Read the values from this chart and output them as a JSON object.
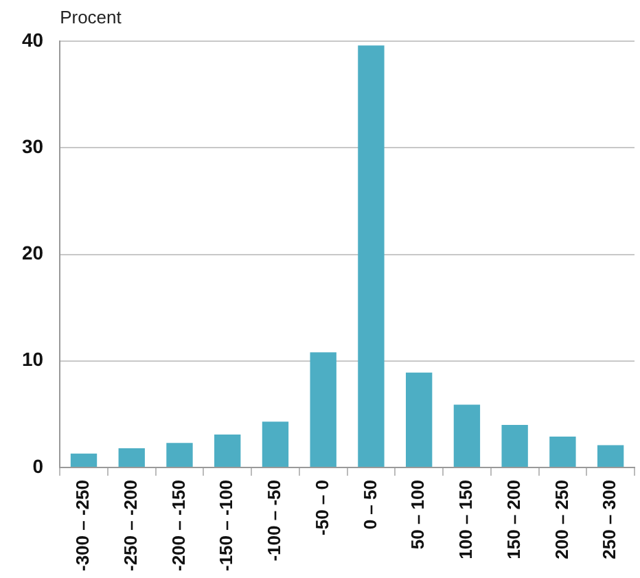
{
  "chart_data": {
    "type": "bar",
    "ylabel": "Procent",
    "categories": [
      "-300 – -250",
      "-250 – -200",
      "-200 – -150",
      "-150 – -100",
      "-100 – -50",
      "-50 – 0",
      "0 – 50",
      "50 – 100",
      "100 – 150",
      "150 – 200",
      "200 – 250",
      "250 – 300"
    ],
    "values": [
      1.3,
      1.8,
      2.3,
      3.1,
      4.3,
      10.8,
      39.6,
      8.9,
      5.9,
      4.0,
      2.9,
      2.1
    ],
    "color": "#4daec4",
    "ylim": [
      0,
      40
    ],
    "yticks": [
      0,
      10,
      20,
      30,
      40
    ],
    "grid": "y",
    "legend": false
  }
}
